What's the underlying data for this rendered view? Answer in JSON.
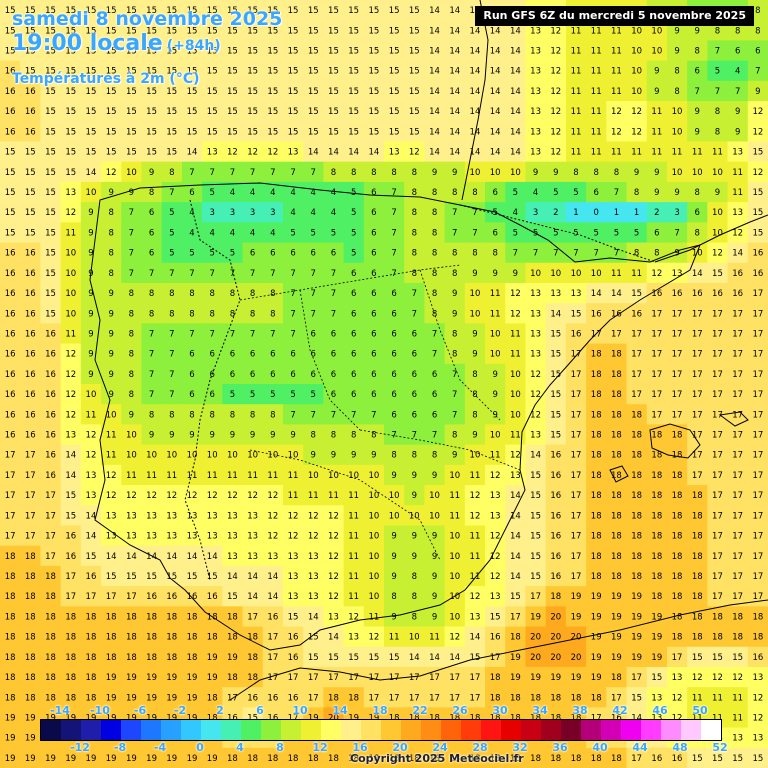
{
  "header": {
    "date": "samedi 8 novembre 2025",
    "time": "19:00 locale",
    "lead": "(+84h)",
    "variable": "Températures à 2m (°C)"
  },
  "run_label": "Run GFS 6Z du mercredi 5 novembre 2025",
  "copyright": "Copyright 2025 Meteociel.fr",
  "legend": {
    "top_labels": [
      "-14",
      "-10",
      "-6",
      "-2",
      "2",
      "6",
      "10",
      "14",
      "18",
      "22",
      "26",
      "30",
      "34",
      "38",
      "42",
      "46",
      "50"
    ],
    "bottom_labels": [
      "-12",
      "-8",
      "-4",
      "0",
      "4",
      "8",
      "12",
      "16",
      "20",
      "24",
      "28",
      "32",
      "36",
      "40",
      "44",
      "48",
      "52"
    ],
    "colors": [
      "#0a0a4a",
      "#141478",
      "#1e1eaa",
      "#0000e0",
      "#1e46ff",
      "#1e78ff",
      "#28a0ff",
      "#32c8ff",
      "#46e6f0",
      "#46f0b4",
      "#50f064",
      "#8cf03c",
      "#c8f032",
      "#f0f032",
      "#ffff64",
      "#fff08c",
      "#ffe164",
      "#ffc832",
      "#ffaa1e",
      "#ff8c14",
      "#ff640a",
      "#ff3c0a",
      "#ff1414",
      "#e60000",
      "#c80014",
      "#a0001e",
      "#780028",
      "#b40078",
      "#d200b4",
      "#f000f0",
      "#ff3cff",
      "#ff8cff",
      "#ffc8ff",
      "#ffffff"
    ]
  },
  "grid": {
    "cols": 38,
    "rows": 38,
    "rows_values": [
      "15 15 15 15 15 15 15 15 15 15 15 15 15 15 15 15 15 15 15 15 15 14 14 14 14 14 13 12 11 11 11 10 9 8 7 7 7 8",
      "15 15 15 15 15 15 15 15 15 15 15 15 15 15 15 15 15 15 15 15 15 14 14 14 14 14 13 12 11 11 11 10 10 9 9 8 8 8",
      "15 15 15 15 15 15 15 15 15 15 15 15 15 15 15 15 15 15 15 15 15 14 14 14 14 14 13 12 11 11 11 10 10 9 8 7 6 6",
      "16 15 15 15 15 15 15 15 15 15 15 15 15 15 15 15 15 15 15 15 15 14 14 14 14 14 13 12 11 11 11 10 9 8 6 5 4 7",
      "16 16 15 15 15 15 15 15 15 15 15 15 15 15 15 15 15 15 15 15 15 14 14 14 14 14 13 12 11 11 11 10 9 8 7 7 7 9",
      "16 16 15 15 15 15 15 15 15 15 15 15 15 15 15 15 15 15 15 15 15 14 14 14 14 14 13 12 11 11 12 12 11 10 9 8 9 12",
      "16 16 15 15 15 15 15 15 15 15 15 15 15 15 15 15 15 15 15 15 15 14 14 14 14 14 13 12 11 11 12 12 11 10 9 8 9 12",
      "15 15 15 15 15 15 15 15 15 14 13 12 12 12 13 14 14 14 14 13 12 14 14 14 14 14 13 12 11 11 11 11 11 11 11 11 13 15",
      "15 15 15 15 14 12 10 9 8 7 7 7 7 7 7 7 8 8 8 8 8 9 9 10 10 10 9 9 8 8 8 9 9 10 10 10 11 12",
      "15 15 15 13 10 9 9 8 7 6 5 4 4 4 4 4 4 5 6 7 8 8 8 8 6 5 4 5 5 6 7 8 9 9 8 9 11 15",
      "15 15 15 12 9 8 7 6 5 4 3 3 3 3 4 4 4 5 6 7 8 8 7 7 5 4 3 2 1 0 1 1 2 3 6 10 13 15",
      "15 15 15 11 9 8 7 6 5 4 4 4 4 4 5 5 5 5 6 7 8 8 7 7 6 5 5 5 5 5 5 5 6 7 8 10 12 15",
      "16 16 15 10 9 8 7 6 5 5 5 5 6 6 6 6 6 5 6 7 8 8 8 8 8 7 7 7 7 7 7 8 8 9 10 12 14 16",
      "16 16 15 10 9 8 7 7 7 7 7 7 7 7 7 7 7 6 6 7 8 8 8 9 9 9 10 10 10 10 11 11 12 13 14 15 16 16",
      "16 16 15 10 9 9 8 8 8 8 8 8 8 8 7 7 7 6 6 6 7 8 9 10 11 12 13 13 13 14 14 15 16 16 16 16 16 17",
      "16 16 15 10 9 9 8 8 8 8 8 8 8 8 7 7 7 6 6 6 7 8 9 10 11 12 13 14 15 16 16 16 17 17 17 17 17 17",
      "16 16 16 11 9 9 8 7 7 7 7 7 7 7 7 6 6 6 6 6 6 7 8 9 10 11 13 15 16 17 17 17 17 17 17 17 17 17",
      "16 16 16 12 9 9 8 7 7 6 6 6 6 6 6 6 6 6 6 6 6 7 8 9 10 11 13 15 17 18 18 17 17 17 17 17 17 17",
      "16 16 16 12 9 9 8 7 7 6 6 6 6 6 6 6 6 6 6 6 6 6 7 8 9 10 12 15 17 18 18 17 17 17 17 17 17 17",
      "16 16 16 12 10 9 8 7 7 6 6 5 5 5 5 5 6 6 6 6 6 6 7 8 9 10 12 15 17 18 18 17 17 17 17 17 17 17",
      "16 16 16 12 11 10 9 8 8 8 8 8 8 8 7 7 7 7 7 6 6 6 7 8 9 10 12 15 17 18 18 18 17 17 17 17 17 17",
      "16 16 16 13 12 11 10 9 9 9 9 9 9 9 9 8 8 8 8 7 7 7 8 9 10 11 13 15 17 18 18 18 18 18 17 17 17 17",
      "17 17 16 14 12 11 10 10 10 10 10 10 10 10 10 9 9 9 9 8 8 8 9 10 11 12 14 16 17 18 18 18 18 18 17 17 17 17",
      "17 17 16 14 13 12 11 11 11 11 11 11 11 11 11 10 10 10 10 9 9 9 10 11 12 13 15 16 17 18 18 18 18 18 17 17 17 17",
      "17 17 17 15 13 12 12 12 12 12 12 12 12 12 11 11 11 11 10 10 9 10 11 12 13 14 15 16 17 18 18 18 18 18 18 17 17 17",
      "17 17 17 15 14 13 13 13 13 13 13 13 13 12 12 12 12 11 10 10 10 10 11 12 13 14 15 16 17 18 18 18 18 18 18 17 17 17",
      "17 17 17 16 14 13 13 13 13 13 13 13 13 12 12 12 12 11 10 9 9 9 10 11 12 14 15 16 17 18 18 18 18 18 18 17 17 17",
      "18 18 17 16 15 14 14 14 14 14 14 13 13 13 13 13 12 11 10 9 9 9 10 11 12 14 15 16 17 18 18 18 18 18 18 17 17 17",
      "18 18 18 17 16 15 15 15 15 15 15 14 14 14 13 13 12 11 10 9 8 9 10 11 12 14 15 16 17 18 18 18 18 18 18 17 17 17",
      "18 18 18 17 17 17 17 16 16 16 16 15 14 14 13 13 12 11 10 8 8 9 10 12 13 15 17 18 19 19 19 19 18 18 18 17 17 17",
      "18 18 18 18 18 18 18 18 18 18 18 18 17 16 15 14 13 12 11 9 8 9 10 13 15 17 19 20 19 19 19 19 19 18 18 18 18 18",
      "18 18 18 18 18 18 18 18 18 18 18 18 18 17 16 15 14 13 12 11 10 11 12 14 16 18 20 20 20 19 19 19 19 18 18 18 18 18",
      "18 18 18 18 18 18 18 18 18 18 19 19 18 17 16 15 15 15 15 15 14 14 14 15 17 19 20 20 20 19 19 19 19 17 15 15 15 16",
      "18 18 18 18 18 19 19 19 19 19 19 18 18 17 17 17 17 17 17 17 17 17 17 17 18 19 19 19 19 19 18 17 15 13 12 12 12 13",
      "18 18 18 18 18 19 19 19 19 19 18 17 16 16 16 17 18 18 17 17 17 17 17 17 18 18 18 18 18 18 17 15 13 12 11 11 11 12",
      "19 19 19 19 19 19 19 19 19 19 18 16 15 16 17 19 20 19 19 18 18 18 18 18 18 18 18 18 18 17 16 14 13 12 11 11 11 12",
      "19 19 19 19 19 19 19 19 19 19 18 17 16 17 18 19 19 19 19 18 18 18 18 18 18 18 18 18 18 17 16 15 14 13 13 13 13 13",
      "19 19 19 19 19 19 19 19 19 19 19 18 18 18 18 18 18 18 18 18 18 18 18 18 18 18 18 18 18 18 18 17 16 16 15 15 15 15"
    ]
  }
}
